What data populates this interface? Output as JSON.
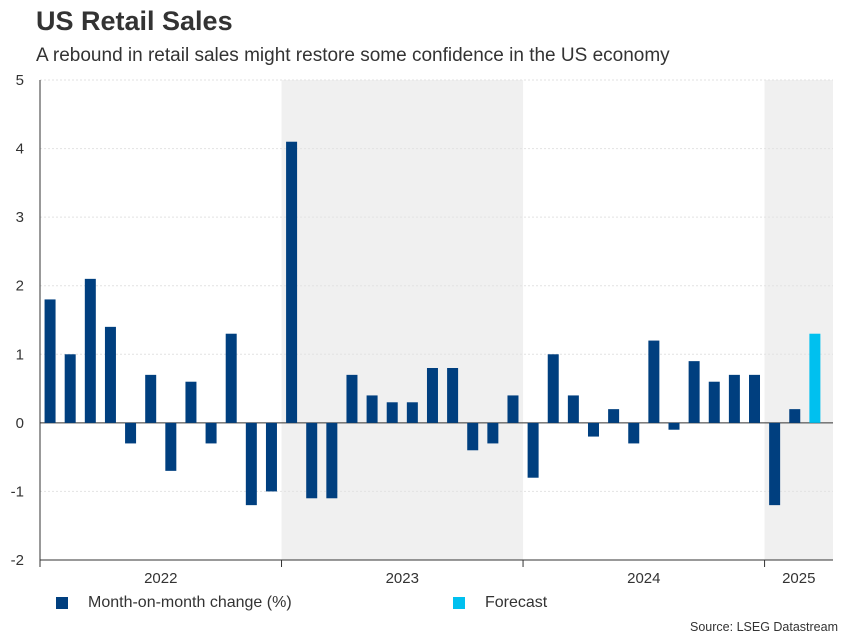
{
  "chart_data": {
    "type": "bar",
    "title": "US Retail Sales",
    "subtitle": "A rebound in retail sales might restore some confidence in the US economy",
    "xlabel": "",
    "ylabel": "",
    "ylim": [
      -2,
      5
    ],
    "yticks": [
      -2,
      -1,
      0,
      1,
      2,
      3,
      4,
      5
    ],
    "year_labels": [
      "2022",
      "2023",
      "2024",
      "2025"
    ],
    "categories": [
      "2022-01",
      "2022-02",
      "2022-03",
      "2022-04",
      "2022-05",
      "2022-06",
      "2022-07",
      "2022-08",
      "2022-09",
      "2022-10",
      "2022-11",
      "2022-12",
      "2023-01",
      "2023-02",
      "2023-03",
      "2023-04",
      "2023-05",
      "2023-06",
      "2023-07",
      "2023-08",
      "2023-09",
      "2023-10",
      "2023-11",
      "2023-12",
      "2024-01",
      "2024-02",
      "2024-03",
      "2024-04",
      "2024-05",
      "2024-06",
      "2024-07",
      "2024-08",
      "2024-09",
      "2024-10",
      "2024-11",
      "2024-12",
      "2025-01",
      "2025-02",
      "2025-03"
    ],
    "series": [
      {
        "name": "Month-on-month change (%)",
        "color": "#003f7f",
        "values": [
          1.8,
          1.0,
          2.1,
          1.4,
          -0.3,
          0.7,
          -0.7,
          0.6,
          -0.3,
          1.3,
          -1.2,
          -1.0,
          4.1,
          -1.1,
          -1.1,
          0.7,
          0.4,
          0.3,
          0.3,
          0.8,
          0.8,
          -0.4,
          -0.3,
          0.4,
          -0.8,
          1.0,
          0.4,
          -0.2,
          0.2,
          -0.3,
          1.2,
          -0.1,
          0.9,
          0.6,
          0.7,
          0.7,
          -1.2,
          0.2,
          null
        ]
      },
      {
        "name": "Forecast",
        "color": "#00c0ef",
        "values": [
          null,
          null,
          null,
          null,
          null,
          null,
          null,
          null,
          null,
          null,
          null,
          null,
          null,
          null,
          null,
          null,
          null,
          null,
          null,
          null,
          null,
          null,
          null,
          null,
          null,
          null,
          null,
          null,
          null,
          null,
          null,
          null,
          null,
          null,
          null,
          null,
          null,
          null,
          1.3
        ]
      }
    ],
    "legend": "bottom",
    "source": "Source: LSEG Datastream",
    "shaded_years": [
      "2023",
      "2025"
    ]
  }
}
